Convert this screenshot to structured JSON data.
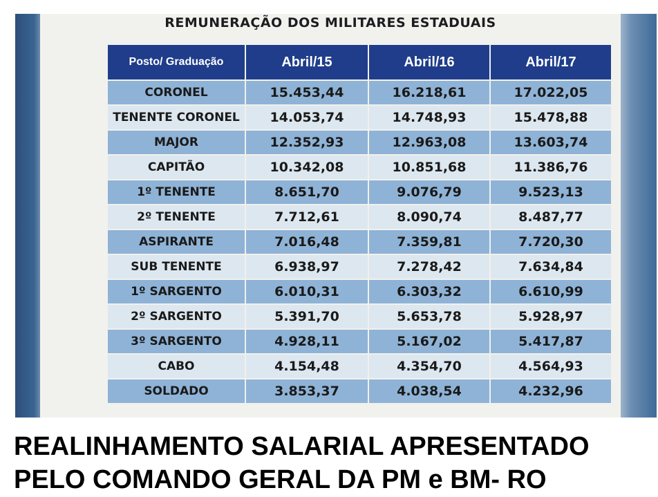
{
  "document": {
    "title": "REMUNERAÇÃO DOS MILITARES ESTADUAIS"
  },
  "table": {
    "headers": [
      "Posto/ Graduação",
      "Abril/15",
      "Abril/16",
      "Abril/17"
    ],
    "rows": [
      [
        "CORONEL",
        "15.453,44",
        "16.218,61",
        "17.022,05"
      ],
      [
        "TENENTE CORONEL",
        "14.053,74",
        "14.748,93",
        "15.478,88"
      ],
      [
        "MAJOR",
        "12.352,93",
        "12.963,08",
        "13.603,74"
      ],
      [
        "CAPITÃO",
        "10.342,08",
        "10.851,68",
        "11.386,76"
      ],
      [
        "1º TENENTE",
        "8.651,70",
        "9.076,79",
        "9.523,13"
      ],
      [
        "2º TENENTE",
        "7.712,61",
        "8.090,74",
        "8.487,77"
      ],
      [
        "ASPIRANTE",
        "7.016,48",
        "7.359,81",
        "7.720,30"
      ],
      [
        "SUB TENENTE",
        "6.938,97",
        "7.278,42",
        "7.634,84"
      ],
      [
        "1º SARGENTO",
        "6.010,31",
        "6.303,32",
        "6.610,99"
      ],
      [
        "2º SARGENTO",
        "5.391,70",
        "5.653,78",
        "5.928,97"
      ],
      [
        "3º SARGENTO",
        "4.928,11",
        "5.167,02",
        "5.417,87"
      ],
      [
        "CABO",
        "4.154,48",
        "4.354,70",
        "4.564,93"
      ],
      [
        "SOLDADO",
        "3.853,37",
        "4.038,54",
        "4.232,96"
      ]
    ]
  },
  "caption": {
    "line1": "REALINHAMENTO SALARIAL APRESENTADO",
    "line2": "PELO COMANDO GERAL DA PM e BM- RO"
  }
}
